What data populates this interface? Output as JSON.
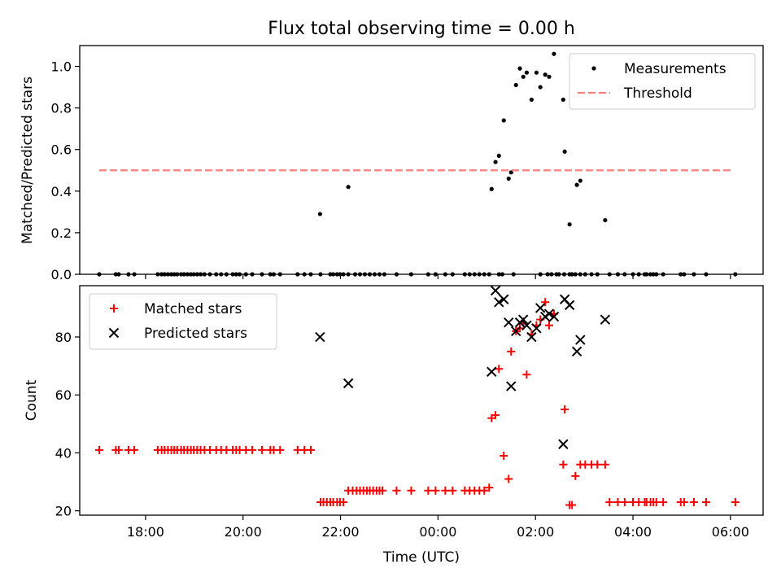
{
  "figure": {
    "title": "Flux total observing time = 0.00 h"
  },
  "chart_data": [
    {
      "type": "scatter",
      "ylabel": "Matched/Predicted stars",
      "xlabel": "",
      "xlim_hours": [
        16.65,
        30.67
      ],
      "ylim": [
        0,
        1.1
      ],
      "yticks": [
        0.0,
        0.2,
        0.4,
        0.6,
        0.8,
        1.0
      ],
      "ytick_labels": [
        "0.0",
        "0.2",
        "0.4",
        "0.6",
        "0.8",
        "1.0"
      ],
      "grid": false,
      "legend_position": "upper right",
      "series": [
        {
          "name": "Measurements",
          "marker": "dot",
          "color": "#000000",
          "x": [
            17.05,
            17.39,
            17.45,
            17.65,
            17.77,
            18.25,
            18.33,
            18.39,
            18.46,
            18.53,
            18.59,
            18.65,
            18.73,
            18.79,
            18.86,
            18.93,
            18.99,
            19.06,
            19.13,
            19.21,
            19.32,
            19.45,
            19.55,
            19.66,
            19.79,
            19.86,
            19.93,
            20.06,
            20.19,
            20.39,
            20.56,
            20.63,
            20.76,
            21.12,
            21.26,
            21.39,
            21.59,
            21.79,
            21.85,
            21.93,
            21.99,
            22.06,
            22.16,
            22.3,
            22.4,
            22.5,
            22.6,
            22.7,
            22.8,
            22.9,
            23.15,
            23.45,
            23.8,
            23.95,
            24.15,
            24.3,
            24.55,
            24.65,
            24.75,
            24.85,
            24.95,
            25.05,
            25.25,
            25.32,
            25.55,
            26.1,
            26.25,
            26.33,
            26.43,
            26.48,
            26.59,
            26.7,
            26.75,
            26.82,
            26.92,
            27.02,
            27.15,
            27.27,
            27.52,
            27.69,
            27.83,
            28.0,
            28.12,
            28.24,
            28.28,
            28.36,
            28.42,
            28.48,
            28.62,
            28.98,
            29.05,
            29.25,
            29.5,
            30.1
          ],
          "y": [
            0,
            0,
            0,
            0,
            0,
            0,
            0,
            0,
            0,
            0,
            0,
            0,
            0,
            0,
            0,
            0,
            0,
            0,
            0,
            0,
            0,
            0,
            0,
            0,
            0,
            0,
            0,
            0,
            0,
            0,
            0,
            0,
            0,
            0,
            0,
            0,
            0,
            0,
            0,
            0,
            0,
            0,
            0,
            0,
            0,
            0,
            0,
            0,
            0,
            0,
            0,
            0,
            0,
            0,
            0,
            0,
            0,
            0,
            0,
            0,
            0,
            0,
            0,
            0,
            0,
            0,
            0,
            0,
            0,
            0,
            0,
            0,
            0,
            0,
            0,
            0,
            0,
            0,
            0,
            0,
            0,
            0,
            0,
            0,
            0,
            0,
            0,
            0,
            0,
            0,
            0,
            0,
            0,
            0
          ]
        },
        {
          "name": "Measurements",
          "marker": "dot",
          "color": "#000000",
          "x": [
            21.58,
            22.16,
            25.1,
            25.18,
            25.25,
            25.35,
            25.45,
            25.5,
            25.6,
            25.68,
            25.75,
            25.82,
            25.92,
            26.02,
            26.1,
            26.2,
            26.28,
            26.38,
            26.57,
            26.6,
            26.7,
            26.85,
            26.92,
            27.43
          ],
          "y": [
            0.29,
            0.42,
            0.41,
            0.54,
            0.57,
            0.74,
            0.46,
            0.49,
            0.91,
            0.99,
            0.95,
            0.97,
            0.84,
            0.97,
            0.9,
            0.96,
            0.95,
            1.06,
            0.84,
            0.59,
            0.24,
            0.43,
            0.45,
            0.26
          ]
        },
        {
          "name": "Threshold",
          "marker": "dashed-line",
          "color": "#ff7f7f",
          "x": [
            17.05,
            30.0
          ],
          "y": [
            0.5,
            0.5
          ]
        }
      ]
    },
    {
      "type": "scatter",
      "ylabel": "Count",
      "xlabel": "Time (UTC)",
      "xlim_hours": [
        16.65,
        30.67
      ],
      "ylim": [
        18.5,
        97.7
      ],
      "yticks": [
        20,
        40,
        60,
        80
      ],
      "ytick_labels": [
        "20",
        "40",
        "60",
        "80"
      ],
      "xticks_hours": [
        18,
        20,
        22,
        24,
        26,
        28,
        30
      ],
      "xtick_labels": [
        "18:00",
        "20:00",
        "22:00",
        "00:00",
        "02:00",
        "04:00",
        "06:00"
      ],
      "grid": false,
      "legend_position": "upper left",
      "series": [
        {
          "name": "Matched stars",
          "marker": "plus",
          "color": "#ff0000",
          "x": [
            17.05,
            17.39,
            17.45,
            17.65,
            17.77,
            18.25,
            18.33,
            18.39,
            18.46,
            18.53,
            18.59,
            18.65,
            18.73,
            18.79,
            18.86,
            18.93,
            18.99,
            19.06,
            19.13,
            19.21,
            19.32,
            19.45,
            19.55,
            19.66,
            19.79,
            19.86,
            19.93,
            20.06,
            20.19,
            20.39,
            20.56,
            20.63,
            20.76,
            21.12,
            21.26,
            21.39,
            21.59,
            21.65,
            21.72,
            21.79,
            21.85,
            21.93,
            21.99,
            22.06,
            22.16,
            22.25,
            22.33,
            22.4,
            22.47,
            22.54,
            22.6,
            22.67,
            22.74,
            22.8,
            22.86,
            23.15,
            23.45,
            23.8,
            23.95,
            24.15,
            24.3,
            24.55,
            24.65,
            24.75,
            24.85,
            24.95,
            25.05,
            25.1,
            25.18,
            25.25,
            25.35,
            25.45,
            25.5,
            25.6,
            25.68,
            25.75,
            25.82,
            25.92,
            26.02,
            26.1,
            26.2,
            26.28,
            26.38,
            26.57,
            26.6,
            26.7,
            26.75,
            26.82,
            26.92,
            27.02,
            27.15,
            27.27,
            27.43,
            27.52,
            27.69,
            27.83,
            28.0,
            28.12,
            28.24,
            28.28,
            28.36,
            28.42,
            28.48,
            28.62,
            28.98,
            29.05,
            29.25,
            29.5,
            30.1
          ],
          "y": [
            41,
            41,
            41,
            41,
            41,
            41,
            41,
            41,
            41,
            41,
            41,
            41,
            41,
            41,
            41,
            41,
            41,
            41,
            41,
            41,
            41,
            41,
            41,
            41,
            41,
            41,
            41,
            41,
            41,
            41,
            41,
            41,
            41,
            41,
            41,
            41,
            23,
            23,
            23,
            23,
            23,
            23,
            23,
            23,
            27,
            27,
            27,
            27,
            27,
            27,
            27,
            27,
            27,
            27,
            27,
            27,
            27,
            27,
            27,
            27,
            27,
            27,
            27,
            27,
            27,
            27,
            28,
            52,
            53,
            69,
            39,
            31,
            75,
            82,
            83,
            85,
            67,
            81,
            84,
            86,
            92,
            84,
            88,
            36,
            55,
            22,
            22,
            32,
            36,
            36,
            36,
            36,
            36,
            23,
            23,
            23,
            23,
            23,
            23,
            23,
            23,
            23,
            23,
            23,
            23,
            23,
            23,
            23,
            23
          ]
        },
        {
          "name": "Predicted stars",
          "marker": "x",
          "color": "#000000",
          "x": [
            21.58,
            22.16,
            25.1,
            25.18,
            25.25,
            25.35,
            25.45,
            25.5,
            25.6,
            25.68,
            25.75,
            25.82,
            25.92,
            26.02,
            26.1,
            26.2,
            26.28,
            26.38,
            26.57,
            26.6,
            26.7,
            26.85,
            26.92,
            27.43
          ],
          "y": [
            80,
            64,
            68,
            96,
            92,
            93,
            85,
            63,
            82,
            85,
            86,
            84,
            80,
            83,
            90,
            87,
            88,
            87,
            43,
            93,
            91,
            75,
            79,
            86
          ]
        }
      ]
    }
  ]
}
